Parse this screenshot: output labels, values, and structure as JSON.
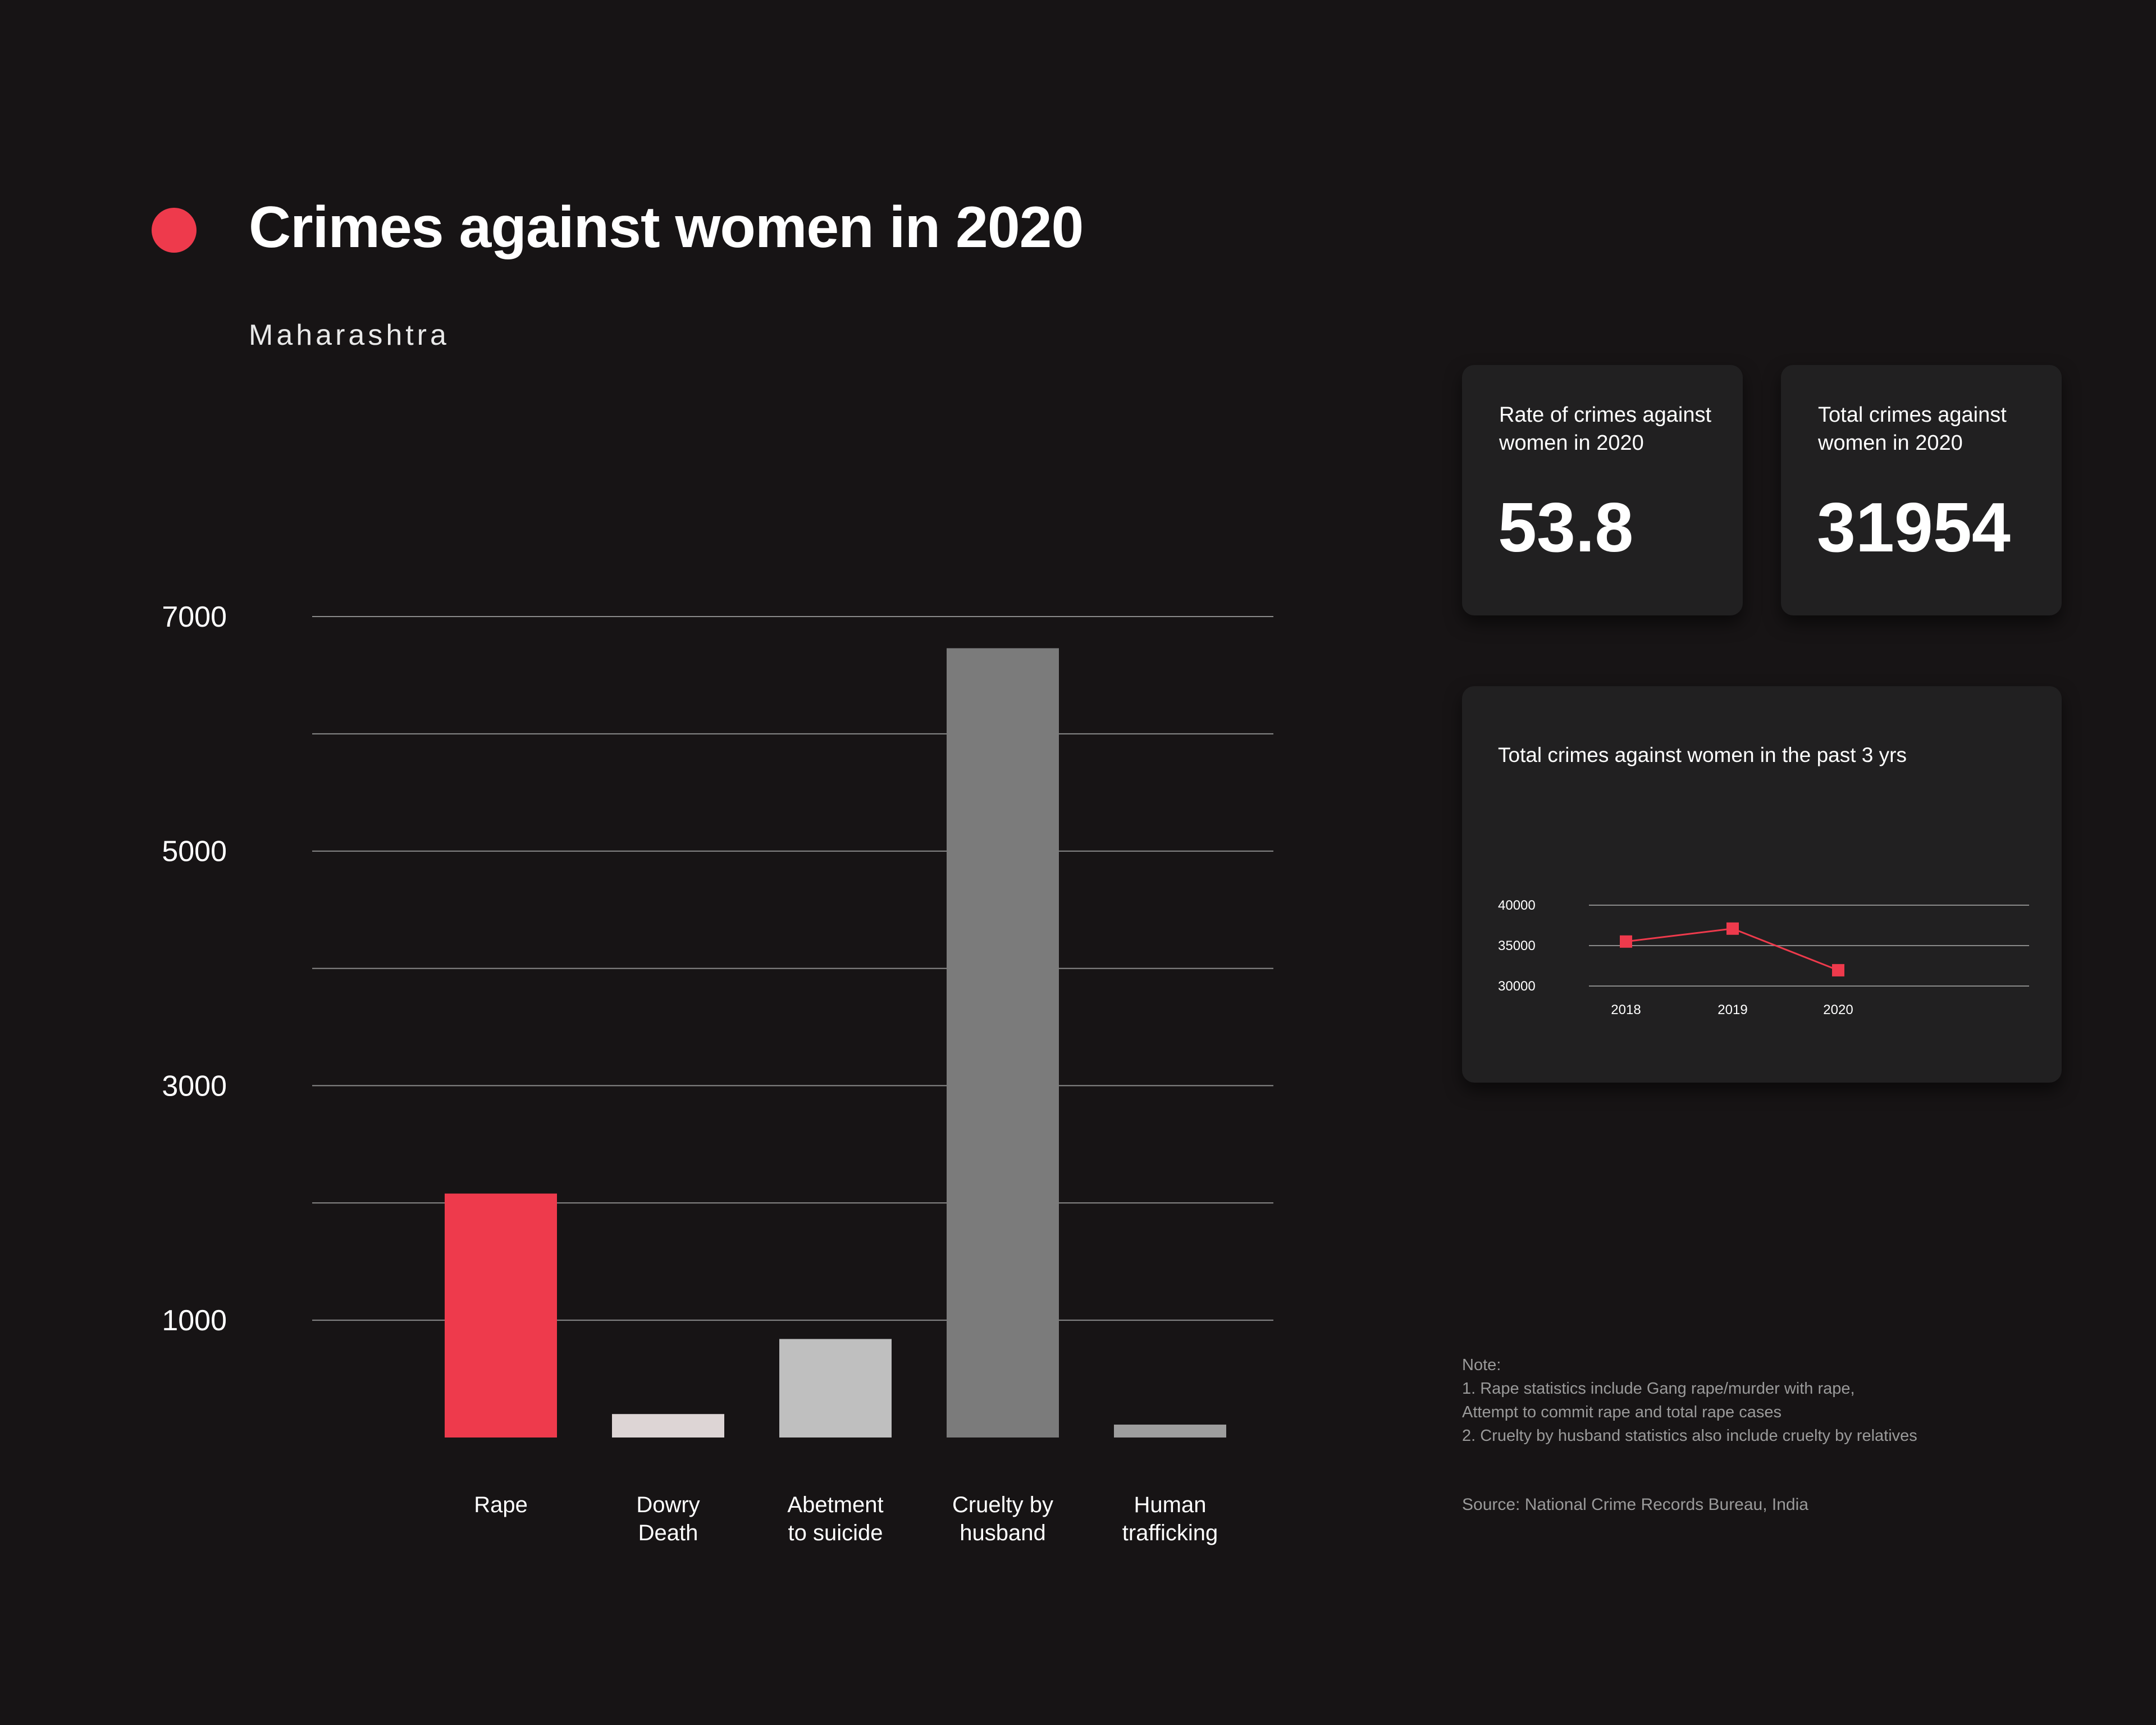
{
  "header": {
    "title": "Crimes against women in 2020",
    "subtitle": "Maharashtra"
  },
  "colors": {
    "background": "#171415",
    "accent": "#ee3a4c",
    "card": "#212021",
    "gridline": "#8a8a8a"
  },
  "stats": {
    "rate": {
      "label_line1": "Rate of crimes against",
      "label_line2": "women in 2020",
      "value": "53.8"
    },
    "total": {
      "label_line1": "Total crimes against",
      "label_line2": "women in 2020",
      "value": "31954"
    }
  },
  "chart_data": [
    {
      "type": "bar",
      "title": "",
      "categories": [
        "Rape",
        "Dowry Death",
        "Abetment to suicide",
        "Cruelty by husband",
        "Human trafficking"
      ],
      "category_lines": [
        [
          "Rape"
        ],
        [
          "Dowry",
          "Death"
        ],
        [
          "Abetment",
          "to suicide"
        ],
        [
          "Cruelty by",
          "husband"
        ],
        [
          "Human",
          "trafficking"
        ]
      ],
      "values": [
        2080,
        200,
        840,
        6730,
        110
      ],
      "bar_colors": [
        "#ee3a4c",
        "#ddd5d5",
        "#bfbfbf",
        "#7b7b7b",
        "#9e9e9e"
      ],
      "ylim": [
        0,
        7000
      ],
      "yticks": [
        1000,
        3000,
        5000,
        7000
      ],
      "grid": true,
      "grid_step": 1000,
      "xlabel": "",
      "ylabel": ""
    },
    {
      "type": "line",
      "title": "Total crimes against women in the past 3 yrs",
      "x": [
        "2018",
        "2019",
        "2020"
      ],
      "series": [
        {
          "values": [
            35500,
            37100,
            31954
          ],
          "color": "#ee3a4c"
        }
      ],
      "ylim": [
        30000,
        40000
      ],
      "yticks": [
        30000,
        35000,
        40000
      ],
      "grid": true
    }
  ],
  "notes": {
    "heading": "Note:",
    "lines": [
      "1. Rape statistics include Gang rape/murder with rape,",
      "Attempt to commit rape and total rape cases",
      "2. Cruelty by husband statistics also include cruelty by relatives"
    ]
  },
  "source": "Source: National Crime Records Bureau, India"
}
